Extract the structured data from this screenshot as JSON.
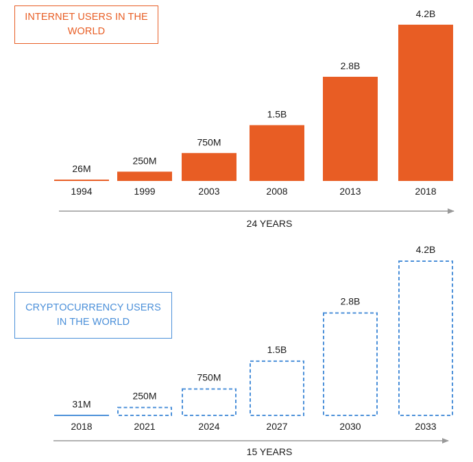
{
  "colors": {
    "internet_accent": "#e85d24",
    "crypto_accent": "#4a8fd9",
    "axis_arrow": "#999999",
    "text": "#1a1a1a"
  },
  "chart_data": [
    {
      "type": "bar",
      "title": "INTERNET USERS IN THE WORLD",
      "categories": [
        "1994",
        "1999",
        "2003",
        "2008",
        "2013",
        "2018"
      ],
      "values": [
        26000000,
        250000000,
        750000000,
        1500000000,
        2800000000,
        4200000000
      ],
      "value_labels": [
        "26M",
        "250M",
        "750M",
        "1.5B",
        "2.8B",
        "4.2B"
      ],
      "bar_style": "solid",
      "color": "#e85d24",
      "xlabel": "24 YEARS",
      "ylabel": "",
      "ylim": [
        0,
        4200000000
      ],
      "grid": false
    },
    {
      "type": "bar",
      "title": "CRYPTOCURRENCY USERS IN THE WORLD",
      "categories": [
        "2018",
        "2021",
        "2024",
        "2027",
        "2030",
        "2033"
      ],
      "values": [
        31000000,
        250000000,
        750000000,
        1500000000,
        2800000000,
        4200000000
      ],
      "value_labels": [
        "31M",
        "250M",
        "750M",
        "1.5B",
        "2.8B",
        "4.2B"
      ],
      "bar_style": "dashed",
      "color": "#4a8fd9",
      "xlabel": "15 YEARS",
      "ylabel": "",
      "ylim": [
        0,
        4200000000
      ],
      "grid": false
    }
  ]
}
